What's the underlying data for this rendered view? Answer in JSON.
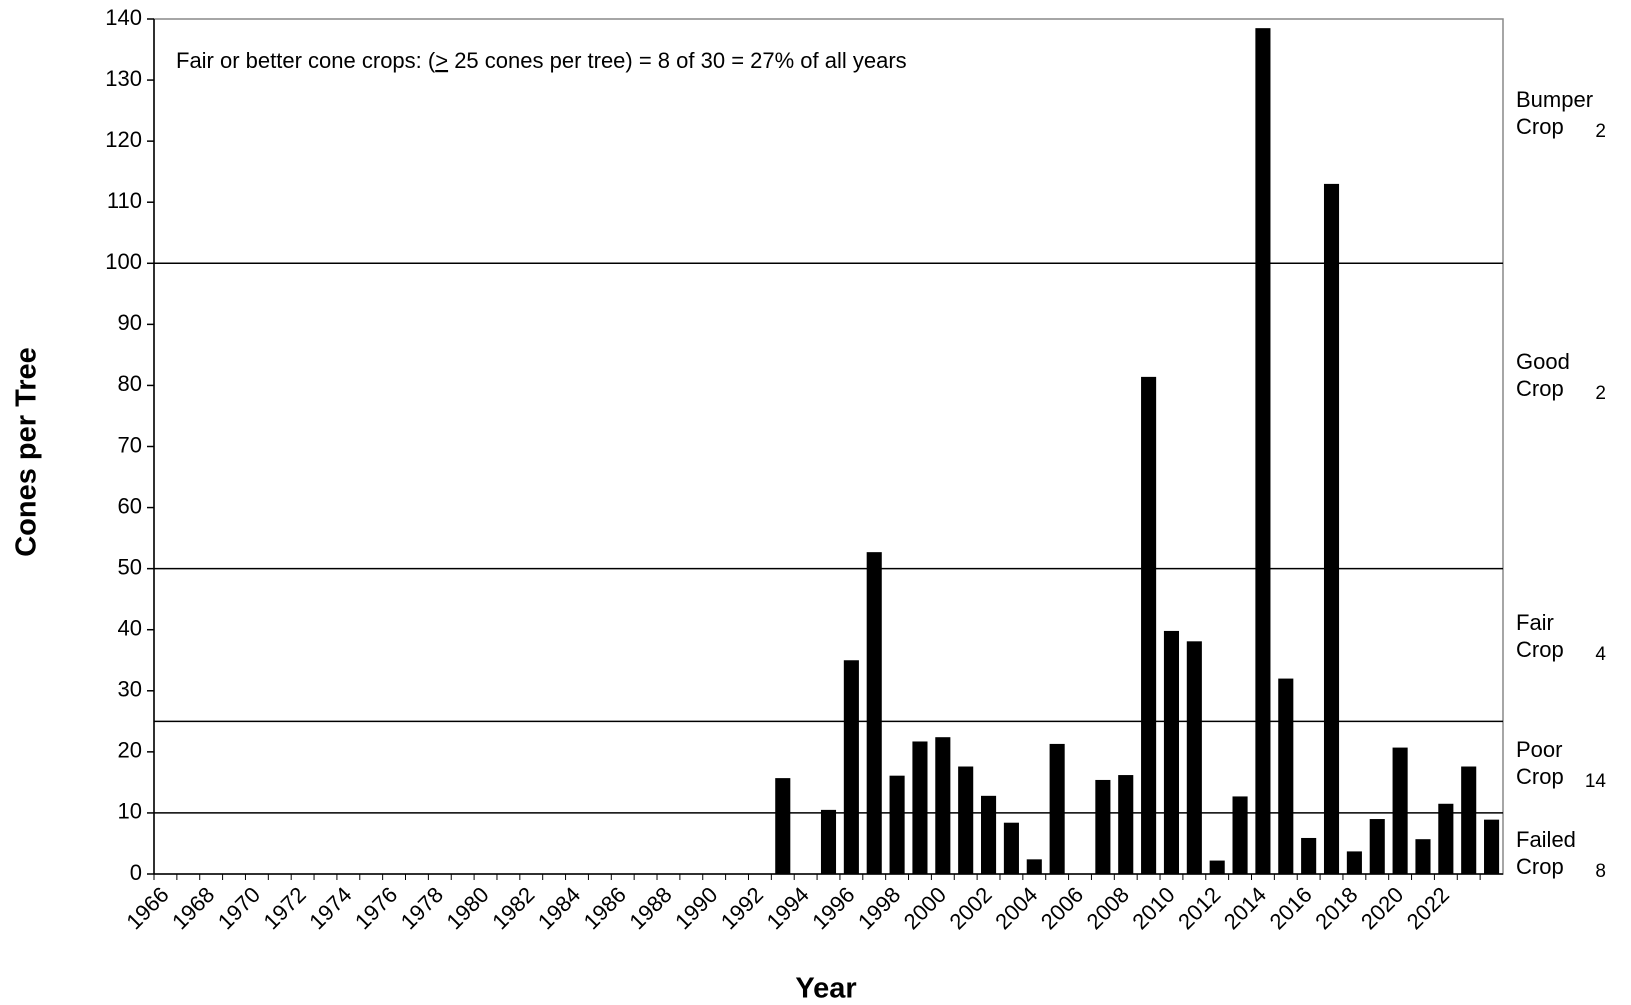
{
  "chart_data": {
    "type": "bar",
    "x_label": "Year",
    "y_label": "Cones per Tree",
    "annotation_parts": [
      "Fair or better cone crops: (",
      ">",
      " 25 cones per tree) = 8 of 30 = 27% of all years"
    ],
    "categories": [
      "1966",
      null,
      "1968",
      null,
      "1970",
      null,
      "1972",
      null,
      "1974",
      null,
      "1976",
      null,
      "1978",
      null,
      "1980",
      null,
      "1982",
      null,
      "1984",
      null,
      "1986",
      null,
      "1988",
      null,
      "1990",
      null,
      "1992",
      null,
      "1994",
      null,
      "1996",
      null,
      "1998",
      null,
      "2000",
      null,
      "2002",
      null,
      "2004",
      null,
      "2006",
      null,
      "2008",
      null,
      "2010",
      null,
      "2012",
      null,
      "2014",
      null,
      "2016",
      null,
      "2018",
      null,
      "2020",
      null,
      "2022",
      null,
      null
    ],
    "values": [
      null,
      null,
      null,
      null,
      null,
      null,
      null,
      null,
      null,
      null,
      null,
      null,
      null,
      null,
      null,
      null,
      null,
      null,
      null,
      null,
      null,
      null,
      null,
      null,
      null,
      null,
      null,
      15.7,
      null,
      10.5,
      35,
      52.7,
      16.1,
      21.7,
      22.4,
      17.6,
      12.8,
      8.4,
      2.4,
      21.3,
      null,
      15.4,
      16.2,
      81.4,
      39.8,
      38.1,
      2.2,
      12.7,
      138.5,
      32,
      5.9,
      113,
      3.7,
      9,
      20.7,
      5.7,
      11.5,
      17.6,
      8.9
    ],
    "color": "#000000",
    "ylim": [
      0,
      140
    ],
    "yticks": [
      0,
      10,
      20,
      30,
      40,
      50,
      60,
      70,
      80,
      90,
      100,
      110,
      120,
      130,
      140
    ],
    "thresholds": [
      10,
      25,
      50,
      100
    ],
    "bands": [
      {
        "lines": [
          "Bumper",
          "Crop"
        ],
        "count": 2
      },
      {
        "lines": [
          "Good",
          "Crop"
        ],
        "count": 2
      },
      {
        "lines": [
          "Fair",
          "Crop"
        ],
        "count": 4
      },
      {
        "lines": [
          "Poor",
          "Crop"
        ],
        "count": 14
      },
      {
        "lines": [
          "Failed",
          "Crop"
        ],
        "count": 8
      }
    ]
  }
}
